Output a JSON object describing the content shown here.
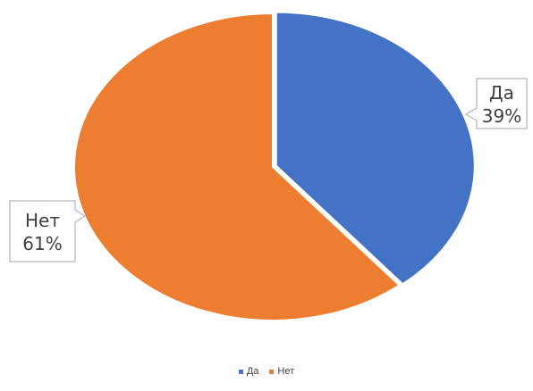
{
  "chart_data": {
    "type": "pie",
    "categories": [
      "Да",
      "Нет"
    ],
    "values": [
      39,
      61
    ],
    "data_labels": [
      {
        "category": "Да",
        "percent": "39%"
      },
      {
        "category": "Нет",
        "percent": "61%"
      }
    ],
    "colors": [
      "#4472c4",
      "#ed7d31"
    ],
    "legend": {
      "position": "bottom",
      "items": [
        {
          "label": "Да",
          "color": "#4472c4"
        },
        {
          "label": "Нет",
          "color": "#ed7d31"
        }
      ]
    }
  }
}
